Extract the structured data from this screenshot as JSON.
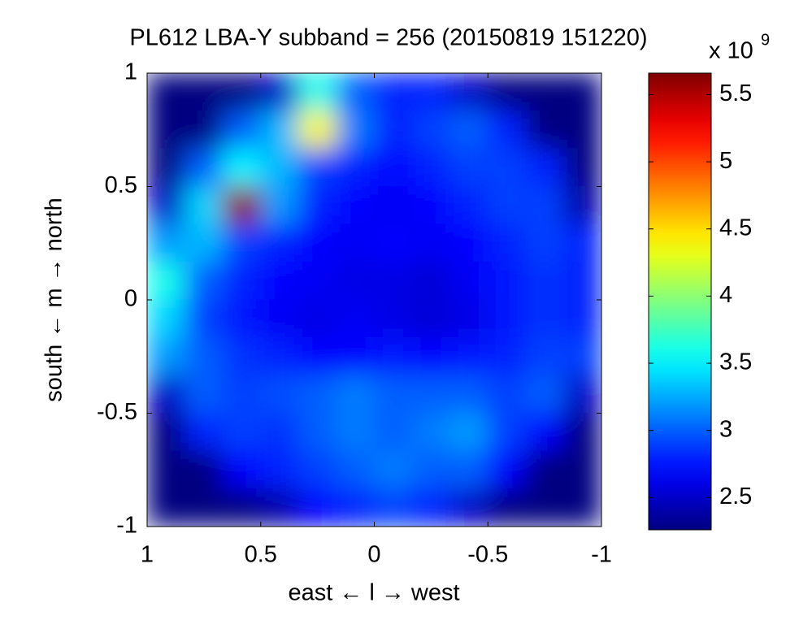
{
  "chart_data": {
    "type": "heatmap",
    "title": "PL612 LBA-Y subband = 256 (20150819 151220)",
    "xlabel": "east ← l → west",
    "ylabel": "south ← m → north",
    "xlim": [
      1,
      -1
    ],
    "ylim": [
      -1,
      1
    ],
    "xticks": [
      1,
      0.5,
      0,
      -0.5,
      -1
    ],
    "yticks": [
      -1,
      -0.5,
      0,
      0.5,
      1
    ],
    "colormap": "jet",
    "clim": [
      2.26,
      5.66
    ],
    "cbticks": [
      2.5,
      3,
      3.5,
      4,
      4.5,
      5,
      5.5
    ],
    "colorbar_multiplier": "x 10",
    "colorbar_exponent": "9",
    "z": [
      [
        2.26,
        2.26,
        2.26,
        2.5,
        3.6,
        3.0,
        2.8,
        2.8,
        2.5,
        2.26,
        2.26,
        2.26
      ],
      [
        2.26,
        2.26,
        3.0,
        3.3,
        4.4,
        3.1,
        2.8,
        2.9,
        3.0,
        2.8,
        2.26,
        2.26
      ],
      [
        2.26,
        3.0,
        3.5,
        3.3,
        2.9,
        2.8,
        2.7,
        2.8,
        2.9,
        2.9,
        2.8,
        2.26
      ],
      [
        2.5,
        3.4,
        5.6,
        3.2,
        2.8,
        2.7,
        2.65,
        2.7,
        2.8,
        2.9,
        2.9,
        2.4
      ],
      [
        3.2,
        3.3,
        2.9,
        2.8,
        2.7,
        2.65,
        2.7,
        2.65,
        2.7,
        2.8,
        2.9,
        2.8
      ],
      [
        3.6,
        3.0,
        2.8,
        2.7,
        2.65,
        2.6,
        2.6,
        2.55,
        2.65,
        2.75,
        2.85,
        2.8
      ],
      [
        3.4,
        2.9,
        2.75,
        2.65,
        2.6,
        2.65,
        2.6,
        2.55,
        2.6,
        2.75,
        2.85,
        2.8
      ],
      [
        3.2,
        3.0,
        2.85,
        2.8,
        2.7,
        2.7,
        2.75,
        2.7,
        2.75,
        2.8,
        2.9,
        2.9
      ],
      [
        2.5,
        3.0,
        2.9,
        2.95,
        3.0,
        3.1,
        3.0,
        3.0,
        3.0,
        2.9,
        3.0,
        2.5
      ],
      [
        2.26,
        2.8,
        2.9,
        2.85,
        3.0,
        3.1,
        3.0,
        3.1,
        3.2,
        2.9,
        2.7,
        2.26
      ],
      [
        2.26,
        2.26,
        2.7,
        2.8,
        2.9,
        3.0,
        3.1,
        3.0,
        3.0,
        2.7,
        2.26,
        2.26
      ],
      [
        2.26,
        2.26,
        2.26,
        2.4,
        2.7,
        2.8,
        2.9,
        2.8,
        2.5,
        2.26,
        2.26,
        2.26
      ]
    ]
  }
}
